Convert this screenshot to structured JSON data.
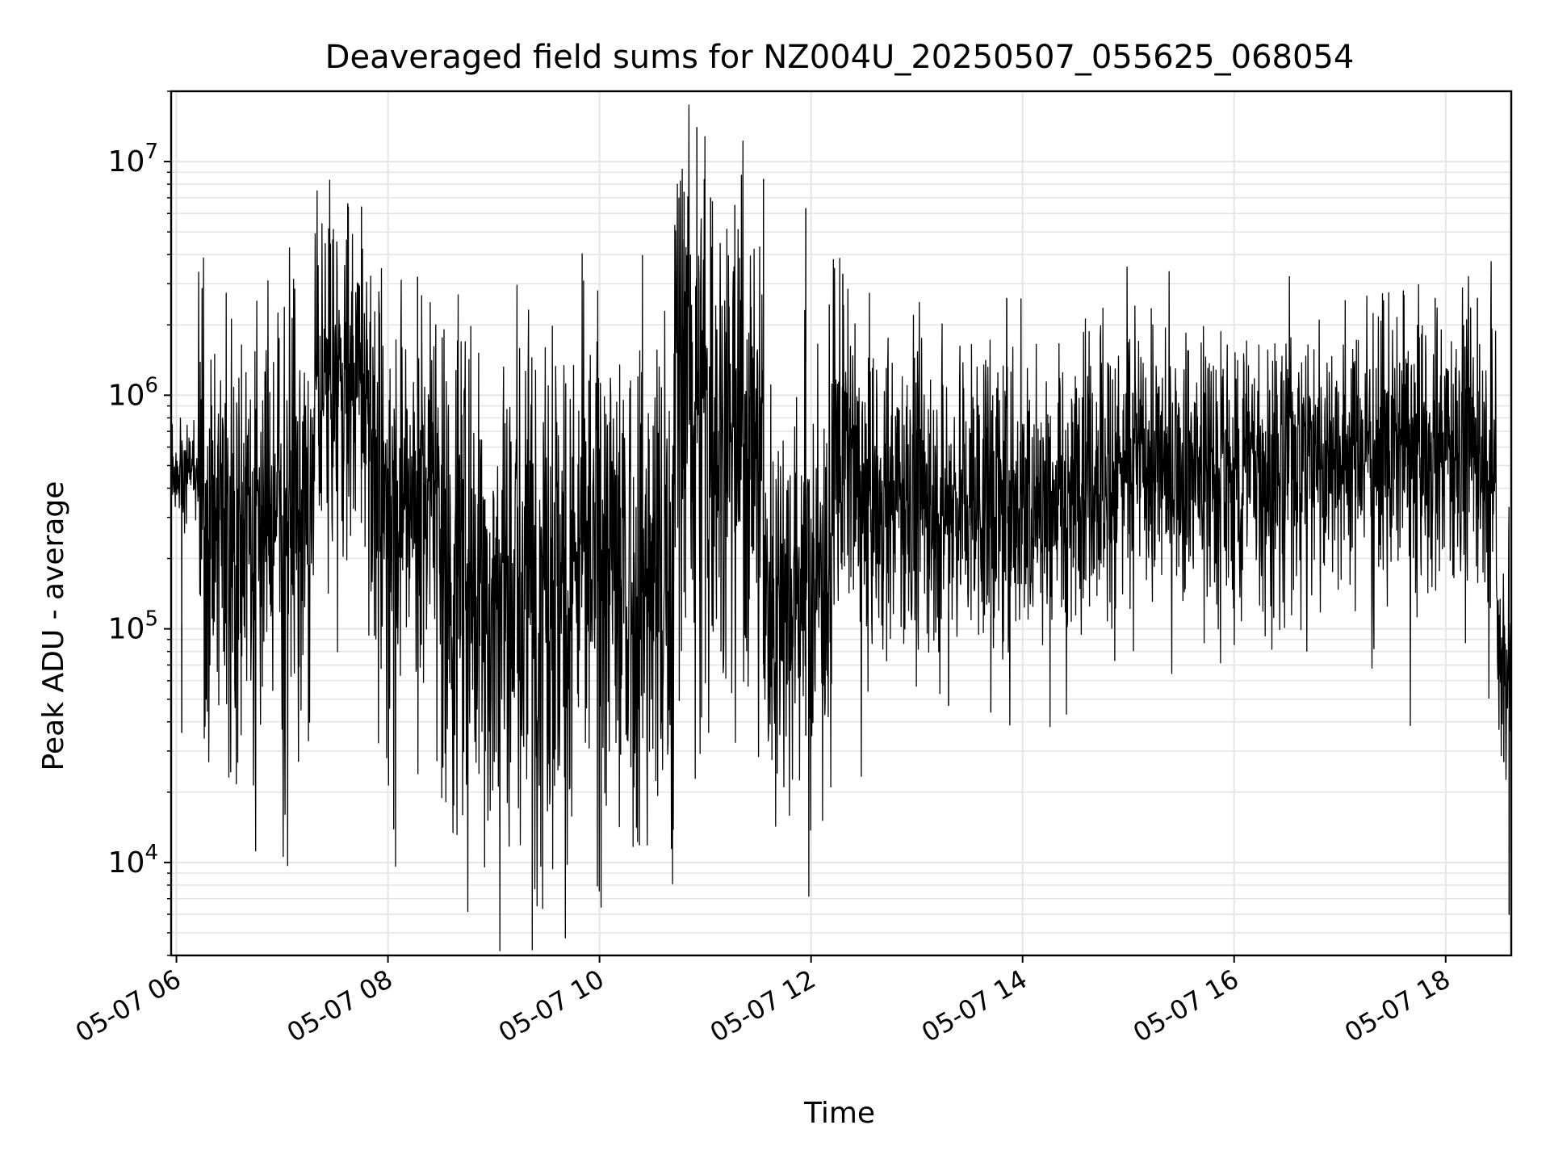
{
  "chart_data": {
    "type": "line",
    "title": "Deaveraged field sums for NZ004U_20250507_055625_068054",
    "xlabel": "Time",
    "ylabel": "Peak ADU - average",
    "yscale": "log",
    "grid": true,
    "line_color": "#000000",
    "grid_color": "#e5e5e5",
    "x_ticks": [
      "05-07 06",
      "05-07 08",
      "05-07 10",
      "05-07 12",
      "05-07 14",
      "05-07 16",
      "05-07 18"
    ],
    "x_tick_hours": [
      6,
      8,
      10,
      12,
      14,
      16,
      18
    ],
    "xlim_hours": [
      5.95,
      18.62
    ],
    "y_ticks": [
      {
        "value": 10000,
        "base": "10",
        "exp": "4"
      },
      {
        "value": 100000,
        "base": "10",
        "exp": "5"
      },
      {
        "value": 1000000,
        "base": "10",
        "exp": "6"
      },
      {
        "value": 10000000,
        "base": "10",
        "exp": "7"
      }
    ],
    "ylim": [
      4000,
      20000000
    ],
    "series": [
      {
        "segments": [
          {
            "start": 5.95,
            "end": 6.2,
            "median": 480000,
            "spread": 0.1,
            "dip": 0.05,
            "dipdepth": 0.4
          },
          {
            "start": 6.2,
            "end": 7.3,
            "median": 380000,
            "spread": 0.4,
            "dip": 0.18,
            "dipdepth": 1.2
          },
          {
            "start": 7.3,
            "end": 7.85,
            "median": 1200000,
            "spread": 0.35,
            "dip": 0.12,
            "dipdepth": 0.9
          },
          {
            "start": 7.85,
            "end": 8.5,
            "median": 500000,
            "spread": 0.35,
            "dip": 0.2,
            "dipdepth": 1.1
          },
          {
            "start": 8.5,
            "end": 10.7,
            "median": 200000,
            "spread": 0.55,
            "dip": 0.22,
            "dipdepth": 0.8
          },
          {
            "start": 10.7,
            "end": 11.0,
            "median": 1500000,
            "spread": 0.45,
            "dip": 0.2,
            "dipdepth": 1.2
          },
          {
            "start": 11.0,
            "end": 11.55,
            "median": 900000,
            "spread": 0.45,
            "dip": 0.2,
            "dipdepth": 1.2
          },
          {
            "start": 11.55,
            "end": 12.2,
            "median": 160000,
            "spread": 0.45,
            "dip": 0.15,
            "dipdepth": 0.6
          },
          {
            "start": 12.2,
            "end": 12.4,
            "median": 600000,
            "spread": 0.35,
            "dip": 0.15,
            "dipdepth": 0.6
          },
          {
            "start": 12.4,
            "end": 14.5,
            "median": 380000,
            "spread": 0.32,
            "dip": 0.1,
            "dipdepth": 0.6
          },
          {
            "start": 14.5,
            "end": 16.5,
            "median": 520000,
            "spread": 0.3,
            "dip": 0.1,
            "dipdepth": 0.7
          },
          {
            "start": 16.5,
            "end": 18.4,
            "median": 620000,
            "spread": 0.28,
            "dip": 0.1,
            "dipdepth": 0.7
          },
          {
            "start": 18.4,
            "end": 18.48,
            "median": 600000,
            "spread": 0.35,
            "dip": 0.2,
            "dipdepth": 0.8
          },
          {
            "start": 18.48,
            "end": 18.62,
            "median": 85000,
            "spread": 0.3,
            "dip": 0.1,
            "dipdepth": 0.5
          }
        ],
        "spikes": [
          {
            "x": 6.05,
            "y": 36000
          },
          {
            "x": 6.97,
            "y": 1750000
          },
          {
            "x": 7.05,
            "y": 36000
          },
          {
            "x": 7.62,
            "y": 6600000
          },
          {
            "x": 7.75,
            "y": 6400000
          },
          {
            "x": 8.28,
            "y": 3200000
          },
          {
            "x": 8.92,
            "y": 30000
          },
          {
            "x": 9.9,
            "y": 1150000
          },
          {
            "x": 10.2,
            "y": 29000
          },
          {
            "x": 10.8,
            "y": 7400000
          },
          {
            "x": 10.92,
            "y": 14000000
          },
          {
            "x": 11.05,
            "y": 7000000
          },
          {
            "x": 11.28,
            "y": 6500000
          },
          {
            "x": 11.55,
            "y": 8400000
          },
          {
            "x": 11.95,
            "y": 6300000
          },
          {
            "x": 11.95,
            "y": 35000
          },
          {
            "x": 12.3,
            "y": 3300000
          },
          {
            "x": 13.3,
            "y": 47000
          },
          {
            "x": 13.7,
            "y": 44000
          },
          {
            "x": 13.85,
            "y": 2600000
          },
          {
            "x": 17.6,
            "y": 2800000
          },
          {
            "x": 17.9,
            "y": 2600000
          },
          {
            "x": 18.3,
            "y": 2600000
          },
          {
            "x": 18.55,
            "y": 27000
          },
          {
            "x": 18.6,
            "y": 6000
          }
        ]
      }
    ]
  }
}
